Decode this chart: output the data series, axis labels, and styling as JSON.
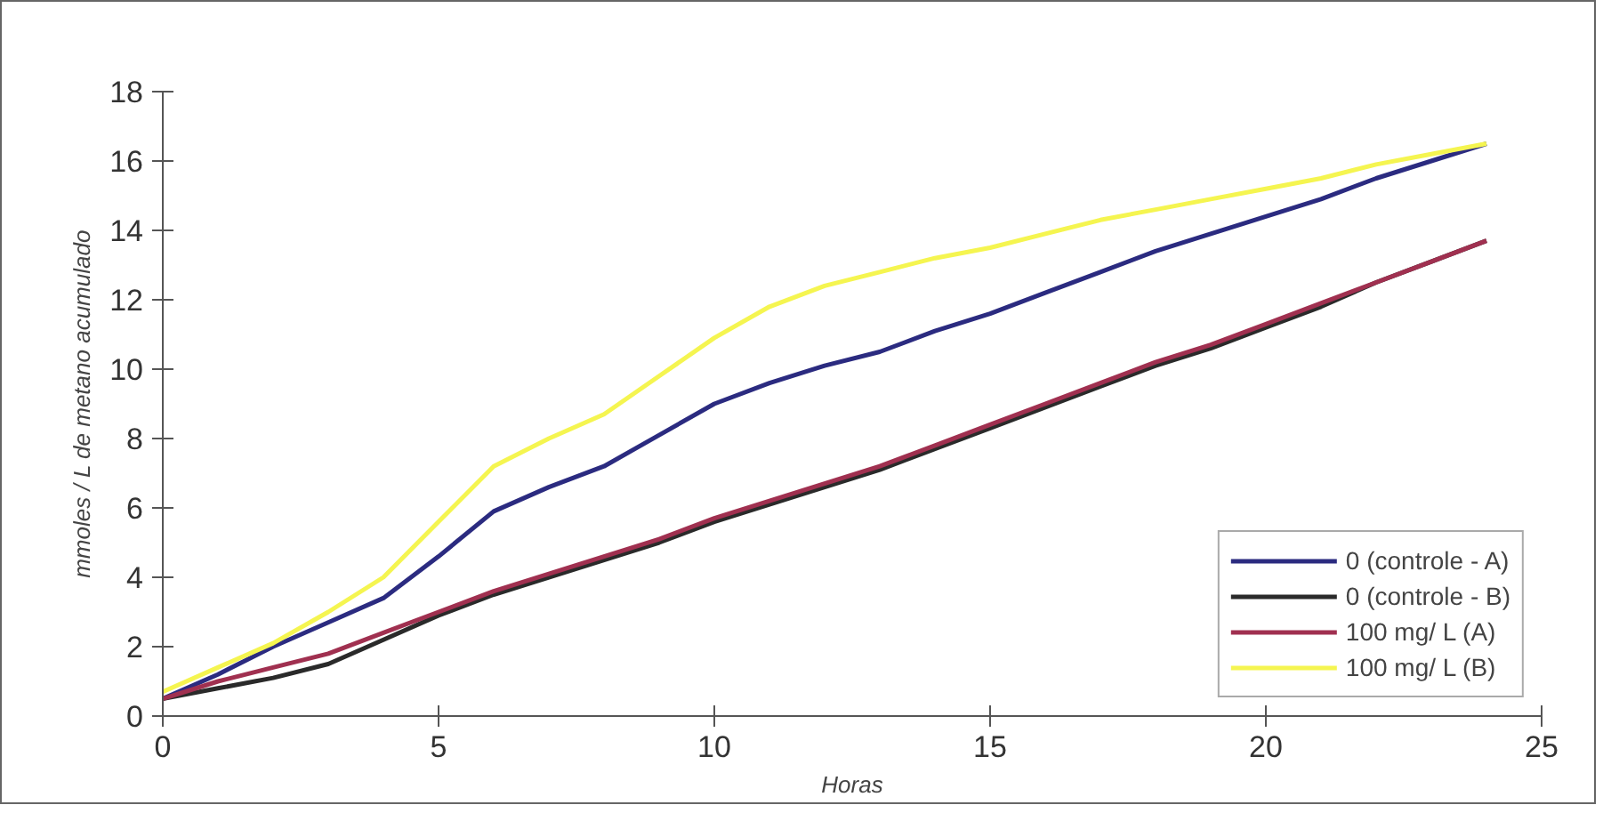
{
  "chart_data": {
    "type": "line",
    "xlabel": "Horas",
    "ylabel": "mmoles / L de metano acumulado",
    "x": [
      0,
      1,
      2,
      3,
      4,
      5,
      6,
      7,
      8,
      9,
      10,
      11,
      12,
      13,
      14,
      15,
      16,
      17,
      18,
      19,
      20,
      21,
      22,
      23,
      24
    ],
    "series": [
      {
        "name": "0 (controle - A)",
        "color": "#2b2b80",
        "values": [
          0.5,
          1.2,
          2.0,
          2.7,
          3.4,
          4.6,
          5.9,
          6.6,
          7.2,
          8.1,
          9.0,
          9.6,
          10.1,
          10.5,
          11.1,
          11.6,
          12.2,
          12.8,
          13.4,
          13.9,
          14.4,
          14.9,
          15.5,
          16.0,
          16.5
        ]
      },
      {
        "name": "0 (controle - B)",
        "color": "#2a2a2a",
        "values": [
          0.5,
          0.8,
          1.1,
          1.5,
          2.2,
          2.9,
          3.5,
          4.0,
          4.5,
          5.0,
          5.6,
          6.1,
          6.6,
          7.1,
          7.7,
          8.3,
          8.9,
          9.5,
          10.1,
          10.6,
          11.2,
          11.8,
          12.5,
          13.1,
          13.7
        ]
      },
      {
        "name": "100 mg/ L (A)",
        "color": "#a03050",
        "values": [
          0.5,
          1.0,
          1.4,
          1.8,
          2.4,
          3.0,
          3.6,
          4.1,
          4.6,
          5.1,
          5.7,
          6.2,
          6.7,
          7.2,
          7.8,
          8.4,
          9.0,
          9.6,
          10.2,
          10.7,
          11.3,
          11.9,
          12.5,
          13.1,
          13.7
        ]
      },
      {
        "name": "100 mg/ L (B)",
        "color": "#f5f550",
        "values": [
          0.7,
          1.4,
          2.1,
          3.0,
          4.0,
          5.6,
          7.2,
          8.0,
          8.7,
          9.8,
          10.9,
          11.8,
          12.4,
          12.8,
          13.2,
          13.5,
          13.9,
          14.3,
          14.6,
          14.9,
          15.2,
          15.5,
          15.9,
          16.2,
          16.5
        ]
      }
    ],
    "xlim": [
      0,
      25
    ],
    "ylim": [
      0,
      18
    ],
    "xticks": [
      0,
      5,
      10,
      15,
      20,
      25
    ],
    "yticks": [
      0,
      2,
      4,
      6,
      8,
      10,
      12,
      14,
      16,
      18
    ],
    "grid": false,
    "legend": "bottom right",
    "marker": "none",
    "line_style": "solid"
  }
}
